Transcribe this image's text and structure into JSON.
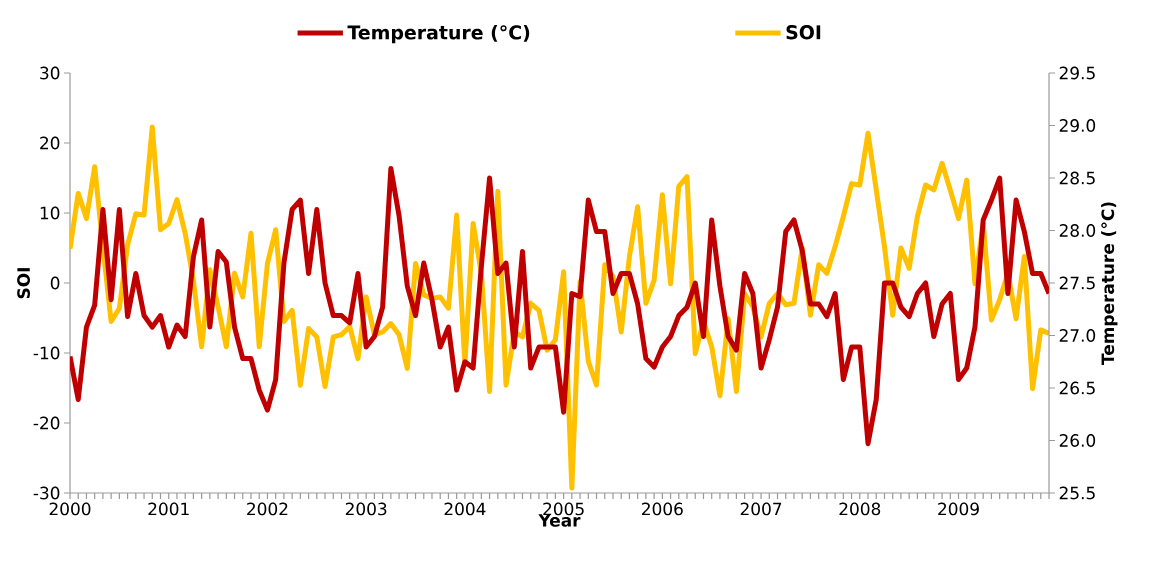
{
  "chart_data": {
    "type": "line",
    "xlabel": "Year",
    "ylabel": "SOI",
    "y2label": "Temperature (°C)",
    "legend": "top",
    "categories": [
      "2000",
      null,
      null,
      null,
      null,
      null,
      null,
      null,
      null,
      null,
      null,
      null,
      "2001",
      null,
      null,
      null,
      null,
      null,
      null,
      null,
      null,
      null,
      null,
      null,
      "2002",
      null,
      null,
      null,
      null,
      null,
      null,
      null,
      null,
      null,
      null,
      null,
      "2003",
      null,
      null,
      null,
      null,
      null,
      null,
      null,
      null,
      null,
      null,
      null,
      "2004",
      null,
      null,
      null,
      null,
      null,
      null,
      null,
      null,
      null,
      null,
      null,
      "2005",
      null,
      null,
      null,
      null,
      null,
      null,
      null,
      null,
      null,
      null,
      null,
      "2006",
      null,
      null,
      null,
      null,
      null,
      null,
      null,
      null,
      null,
      null,
      null,
      "2007",
      null,
      null,
      null,
      null,
      null,
      null,
      null,
      null,
      null,
      null,
      null,
      "2008",
      null,
      null,
      null,
      null,
      null,
      null,
      null,
      null,
      null,
      null,
      null,
      "2009",
      null,
      null,
      null,
      null,
      null,
      null,
      null,
      null,
      null,
      null,
      null
    ],
    "series": [
      {
        "name": "Temperature (°C)",
        "color": "#c00000",
        "axis": "y2",
        "values": [
          26.8,
          26.39,
          27.08,
          27.29,
          28.2,
          27.34,
          28.2,
          27.18,
          27.59,
          27.19,
          27.08,
          27.19,
          26.89,
          27.1,
          26.99,
          27.75,
          28.1,
          27.08,
          27.8,
          27.7,
          27.08,
          26.78,
          26.78,
          26.48,
          26.29,
          26.58,
          27.69,
          28.2,
          28.29,
          27.59,
          28.2,
          27.5,
          27.19,
          27.19,
          27.12,
          27.59,
          26.89,
          26.99,
          27.27,
          28.59,
          28.14,
          27.47,
          27.19,
          27.69,
          27.34,
          26.89,
          27.08,
          26.48,
          26.75,
          26.69,
          27.66,
          28.5,
          27.59,
          27.69,
          26.89,
          27.8,
          26.69,
          26.89,
          26.89,
          26.89,
          26.27,
          27.4,
          27.37,
          28.29,
          27.99,
          27.99,
          27.4,
          27.59,
          27.59,
          27.3,
          26.78,
          26.7,
          26.89,
          26.99,
          27.19,
          27.27,
          27.5,
          26.99,
          28.1,
          27.47,
          26.99,
          26.86,
          27.59,
          27.4,
          26.69,
          26.96,
          27.27,
          27.99,
          28.1,
          27.81,
          27.3,
          27.3,
          27.18,
          27.4,
          26.58,
          26.89,
          26.89,
          25.97,
          26.39,
          27.5,
          27.5,
          27.27,
          27.18,
          27.4,
          27.5,
          26.99,
          27.3,
          27.4,
          26.58,
          26.69,
          27.08,
          28.1,
          28.29,
          28.5,
          27.4,
          28.29,
          27.99,
          27.59,
          27.59,
          27.4
        ]
      },
      {
        "name": "SOI",
        "color": "#ffc000",
        "axis": "y",
        "values": [
          4.9,
          12.8,
          9.2,
          16.6,
          5.2,
          -5.5,
          -3.6,
          5.4,
          9.9,
          9.7,
          22.3,
          7.6,
          8.5,
          11.9,
          7.1,
          0.4,
          -9.1,
          1.9,
          -3.4,
          -9.1,
          1.4,
          -2.0,
          7.1,
          -9.1,
          2.8,
          7.6,
          -5.5,
          -3.9,
          -14.6,
          -6.5,
          -7.7,
          -14.8,
          -7.7,
          -7.4,
          -6.2,
          -10.8,
          -2.0,
          -7.4,
          -7.0,
          -5.8,
          -7.4,
          -12.2,
          2.8,
          -1.7,
          -2.2,
          -2.0,
          -3.6,
          9.7,
          -11.7,
          8.5,
          1.4,
          -15.5,
          13.1,
          -14.6,
          -7.0,
          -7.7,
          -2.9,
          -3.9,
          -9.6,
          -8.1,
          1.6,
          -29.3,
          0.2,
          -11.2,
          -14.6,
          2.6,
          0.9,
          -7.0,
          3.8,
          10.9,
          -2.9,
          0.4,
          12.6,
          -0.1,
          13.8,
          15.2,
          -10.1,
          -5.5,
          -9.1,
          -16.1,
          -5.1,
          -15.5,
          -1.5,
          -3.4,
          -7.7,
          -2.9,
          -1.5,
          -3.1,
          -2.9,
          5.0,
          -4.6,
          2.6,
          1.4,
          5.2,
          9.5,
          14.2,
          14.0,
          21.4,
          13.3,
          5.2,
          -4.6,
          5.0,
          2.1,
          9.5,
          14.0,
          13.3,
          17.1,
          13.3,
          9.2,
          14.7,
          -0.1,
          8.5,
          -5.3,
          -2.4,
          1.4,
          -5.1,
          3.8,
          -15.1,
          -6.7,
          -7.2
        ]
      }
    ],
    "ylim": [
      -30,
      30
    ],
    "yticks": [
      -30,
      -20,
      -10,
      0,
      10,
      20,
      30
    ],
    "y2lim": [
      25.5,
      29.5
    ],
    "y2ticks": [
      25.5,
      {
        "value": 26,
        "label": "26.0"
      },
      26.5,
      {
        "value": 27,
        "label": "27.0"
      },
      27.5,
      {
        "value": 28,
        "label": "28.0"
      },
      28.5,
      {
        "value": 29,
        "label": "29.0"
      },
      29.5
    ]
  }
}
